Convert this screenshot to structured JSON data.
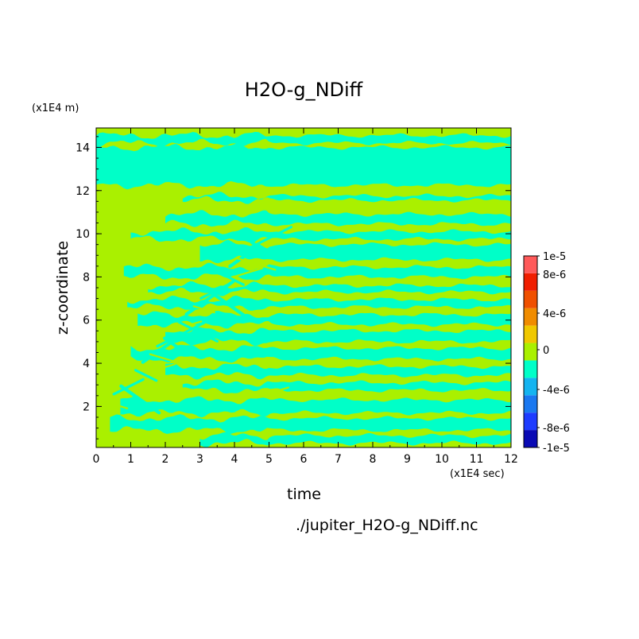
{
  "chart_data": {
    "type": "heatmap",
    "title": "H2O-g_NDiff",
    "xlabel": "time",
    "ylabel": "z-coordinate",
    "x_unit": "(x1E4 sec)",
    "y_unit": "(x1E4 m)",
    "source_file": "./jupiter_H2O-g_NDiff.nc",
    "xlim": [
      0,
      12
    ],
    "ylim": [
      0.1,
      14.9
    ],
    "x_ticks": [
      "0",
      "1",
      "2",
      "3",
      "4",
      "5",
      "6",
      "7",
      "8",
      "9",
      "10",
      "11",
      "12"
    ],
    "y_ticks": [
      "2",
      "4",
      "6",
      "8",
      "10",
      "12",
      "14"
    ],
    "colorbar": {
      "labels": [
        "1e-5",
        "8e-6",
        "4e-6",
        "0",
        "-4e-6",
        "-8e-6",
        "-1e-5"
      ],
      "bins": [
        {
          "range": [
            -1e-05,
            -8e-06
          ],
          "color": "#0a0ab4"
        },
        {
          "range": [
            -8e-06,
            -6e-06
          ],
          "color": "#1e3cff"
        },
        {
          "range": [
            -6e-06,
            -4e-06
          ],
          "color": "#1a78f0"
        },
        {
          "range": [
            -4e-06,
            -2e-06
          ],
          "color": "#14b4f0"
        },
        {
          "range": [
            -2e-06,
            0
          ],
          "color": "#00ffc8"
        },
        {
          "range": [
            0,
            2e-06
          ],
          "color": "#aaf000"
        },
        {
          "range": [
            2e-06,
            4e-06
          ],
          "color": "#f0c800"
        },
        {
          "range": [
            4e-06,
            6e-06
          ],
          "color": "#f08c00"
        },
        {
          "range": [
            6e-06,
            8e-06
          ],
          "color": "#f05000"
        },
        {
          "range": [
            8e-06,
            1e-05
          ],
          "color": "#f01e00"
        },
        {
          "range": [
            1e-05,
            1.2e-05
          ],
          "color": "#ff5a5a"
        }
      ]
    },
    "field_summary": "Values near zero almost everywhere; alternating horizontal bands of slightly negative (-2e-6 to 0) and slightly positive (0 to 2e-6) values. A broad negative band spans roughly z = 12.2 to 14.2; wavy, sloped streaks appear for t < 5 at z = 2 to 10; lower bands thin toward the right (z = 0.5 to 2). Base field is slightly positive.",
    "bands": [
      {
        "z": [
          14.2,
          14.55
        ],
        "x": [
          0,
          12
        ],
        "sign": "neg"
      },
      {
        "z": [
          12.25,
          14.0
        ],
        "x": [
          0,
          12
        ],
        "sign": "neg"
      },
      {
        "z": [
          11.55,
          11.75
        ],
        "x": [
          2.5,
          12
        ],
        "sign": "neg"
      },
      {
        "z": [
          10.45,
          10.9
        ],
        "x": [
          2.0,
          12
        ],
        "sign": "neg"
      },
      {
        "z": [
          9.75,
          10.1
        ],
        "x": [
          1.0,
          12
        ],
        "sign": "neg"
      },
      {
        "z": [
          8.8,
          9.5
        ],
        "x": [
          3.0,
          12
        ],
        "sign": "neg"
      },
      {
        "z": [
          8.0,
          8.45
        ],
        "x": [
          0.8,
          12
        ],
        "sign": "neg"
      },
      {
        "z": [
          7.3,
          7.6
        ],
        "x": [
          1.5,
          12
        ],
        "sign": "neg"
      },
      {
        "z": [
          6.6,
          6.95
        ],
        "x": [
          0.9,
          12
        ],
        "sign": "neg"
      },
      {
        "z": [
          5.8,
          6.25
        ],
        "x": [
          1.2,
          12
        ],
        "sign": "neg"
      },
      {
        "z": [
          5.0,
          5.5
        ],
        "x": [
          2.0,
          12
        ],
        "sign": "neg"
      },
      {
        "z": [
          4.2,
          4.7
        ],
        "x": [
          1.0,
          12
        ],
        "sign": "neg"
      },
      {
        "z": [
          3.45,
          3.85
        ],
        "x": [
          2.0,
          12
        ],
        "sign": "neg"
      },
      {
        "z": [
          2.75,
          3.1
        ],
        "x": [
          2.5,
          12
        ],
        "sign": "neg"
      },
      {
        "z": [
          1.7,
          2.3
        ],
        "x": [
          0.7,
          12
        ],
        "sign": "neg"
      },
      {
        "z": [
          0.9,
          1.45
        ],
        "x": [
          0.4,
          12
        ],
        "sign": "neg"
      },
      {
        "z": [
          0.3,
          0.65
        ],
        "x": [
          3.0,
          12
        ],
        "sign": "neg"
      }
    ]
  }
}
